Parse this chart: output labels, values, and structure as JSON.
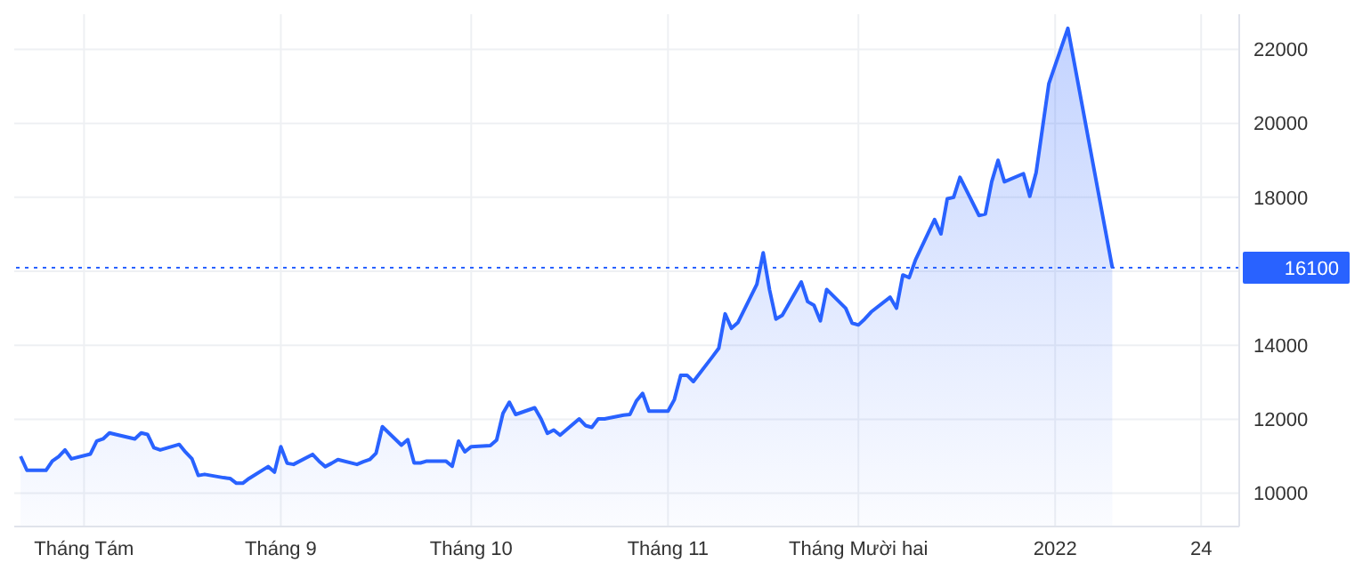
{
  "chart_data": {
    "type": "area",
    "x": [
      "2021-07-22",
      "2021-07-23",
      "2021-07-26",
      "2021-07-27",
      "2021-07-28",
      "2021-07-29",
      "2021-07-30",
      "2021-08-02",
      "2021-08-03",
      "2021-08-04",
      "2021-08-05",
      "2021-08-06",
      "2021-08-09",
      "2021-08-10",
      "2021-08-11",
      "2021-08-12",
      "2021-08-13",
      "2021-08-16",
      "2021-08-17",
      "2021-08-18",
      "2021-08-19",
      "2021-08-20",
      "2021-08-23",
      "2021-08-24",
      "2021-08-25",
      "2021-08-26",
      "2021-08-27",
      "2021-08-30",
      "2021-08-31",
      "2021-09-01",
      "2021-09-02",
      "2021-09-03",
      "2021-09-06",
      "2021-09-07",
      "2021-09-08",
      "2021-09-09",
      "2021-09-10",
      "2021-09-13",
      "2021-09-14",
      "2021-09-15",
      "2021-09-16",
      "2021-09-17",
      "2021-09-20",
      "2021-09-21",
      "2021-09-22",
      "2021-09-23",
      "2021-09-24",
      "2021-09-27",
      "2021-09-28",
      "2021-09-29",
      "2021-09-30",
      "2021-10-01",
      "2021-10-04",
      "2021-10-05",
      "2021-10-06",
      "2021-10-07",
      "2021-10-08",
      "2021-10-11",
      "2021-10-12",
      "2021-10-13",
      "2021-10-14",
      "2021-10-15",
      "2021-10-18",
      "2021-10-19",
      "2021-10-20",
      "2021-10-21",
      "2021-10-22",
      "2021-10-25",
      "2021-10-26",
      "2021-10-27",
      "2021-10-28",
      "2021-10-29",
      "2021-11-01",
      "2021-11-02",
      "2021-11-03",
      "2021-11-04",
      "2021-11-05",
      "2021-11-08",
      "2021-11-09",
      "2021-11-10",
      "2021-11-11",
      "2021-11-12",
      "2021-11-15",
      "2021-11-16",
      "2021-11-17",
      "2021-11-18",
      "2021-11-19",
      "2021-11-22",
      "2021-11-23",
      "2021-11-24",
      "2021-11-25",
      "2021-11-26",
      "2021-11-29",
      "2021-11-30",
      "2021-12-01",
      "2021-12-02",
      "2021-12-03",
      "2021-12-06",
      "2021-12-07",
      "2021-12-08",
      "2021-12-09",
      "2021-12-10",
      "2021-12-13",
      "2021-12-14",
      "2021-12-15",
      "2021-12-16",
      "2021-12-17",
      "2021-12-20",
      "2021-12-21",
      "2021-12-22",
      "2021-12-23",
      "2021-12-24",
      "2021-12-27",
      "2021-12-28",
      "2021-12-29",
      "2021-12-30",
      "2021-12-31",
      "2022-01-03",
      "2022-01-10"
    ],
    "series": [
      {
        "color": "#2962ff",
        "values": [
          11000,
          10620,
          10620,
          10870,
          10990,
          11170,
          10930,
          11060,
          11410,
          11470,
          11630,
          11590,
          11470,
          11630,
          11590,
          11230,
          11170,
          11320,
          11110,
          10930,
          10480,
          10510,
          10420,
          10400,
          10270,
          10270,
          10400,
          10720,
          10570,
          11260,
          10810,
          10780,
          11050,
          10870,
          10720,
          10810,
          10910,
          10780,
          10850,
          10910,
          11080,
          11800,
          11300,
          11450,
          10820,
          10820,
          10870,
          10870,
          10730,
          11410,
          11120,
          11260,
          11290,
          11440,
          12160,
          12460,
          12130,
          12310,
          12010,
          11620,
          11710,
          11570,
          12010,
          11830,
          11780,
          12010,
          12010,
          12110,
          12130,
          12490,
          12700,
          12220,
          12220,
          12530,
          13190,
          13190,
          13020,
          13690,
          13920,
          14850,
          14460,
          14610,
          15650,
          16500,
          15500,
          14710,
          14810,
          15710,
          15180,
          15080,
          14660,
          15510,
          15000,
          14600,
          14550,
          14710,
          14900,
          15300,
          15000,
          15900,
          15830,
          16310,
          17400,
          17010,
          17960,
          18000,
          18540,
          17510,
          17550,
          18420,
          19000,
          18420,
          18640,
          18030,
          18670,
          19870,
          21070,
          22570,
          16100
        ]
      }
    ],
    "xlim": [
      "2021-07-21",
      "2022-01-30"
    ],
    "xticks": [
      {
        "value": "2021-08-01",
        "label": "Tháng Tám"
      },
      {
        "value": "2021-09-01",
        "label": "Tháng 9"
      },
      {
        "value": "2021-10-01",
        "label": "Tháng 10"
      },
      {
        "value": "2021-11-01",
        "label": "Tháng 11"
      },
      {
        "value": "2021-12-01",
        "label": "Tháng Mười hai"
      },
      {
        "value": "2022-01-01",
        "label": "2022"
      },
      {
        "value": "2022-01-24",
        "label": "24"
      }
    ],
    "ylim": [
      9100,
      22950
    ],
    "yticks": [
      10000,
      12000,
      14000,
      {
        "value": 16000,
        "label": null
      },
      18000,
      20000,
      22000
    ],
    "grid": true,
    "marker": "none",
    "line_style": "solid",
    "ref_lines": [
      {
        "axis": "y",
        "value": 16100,
        "label": "16100",
        "color": "#2962ff",
        "line_style": "dotted"
      }
    ]
  }
}
